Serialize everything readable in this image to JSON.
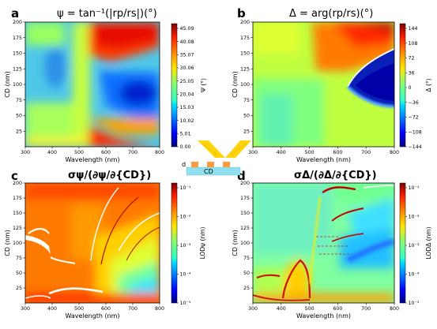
{
  "chart_data": [
    {
      "type": "heatmap",
      "panel": "a",
      "title": "ψ = tan⁻¹(|rp/rs|)(°)",
      "xlabel": "Wavelength (nm)",
      "ylabel": "CD (nm)",
      "xlim": [
        300,
        800
      ],
      "ylim": [
        0,
        200
      ],
      "xticks": [
        "300",
        "400",
        "500",
        "600",
        "700",
        "800"
      ],
      "yticks": [
        "25",
        "50",
        "75",
        "100",
        "125",
        "150",
        "175",
        "200"
      ],
      "colorbar_label": "Ψ (°)",
      "colorbar_ticks": [
        "45.09",
        "40.08",
        "35.07",
        "30.06",
        "25.05",
        "20.04",
        "15.03",
        "10.02",
        "5.01",
        "0.00"
      ],
      "colormap": "jet"
    },
    {
      "type": "heatmap",
      "panel": "b",
      "title": "Δ = arg(rp/rs)(°)",
      "xlabel": "Wavelength (nm)",
      "ylabel": "CD (nm)",
      "xlim": [
        300,
        800
      ],
      "ylim": [
        0,
        200
      ],
      "xticks": [
        "300",
        "400",
        "500",
        "600",
        "700",
        "800"
      ],
      "yticks": [
        "25",
        "50",
        "75",
        "100",
        "125",
        "150",
        "175",
        "200"
      ],
      "colorbar_label": "Δ (°)",
      "colorbar_ticks": [
        "144",
        "108",
        "72",
        "36",
        "0",
        "−36",
        "−72",
        "−108",
        "−144"
      ],
      "colormap": "jet"
    },
    {
      "type": "heatmap",
      "panel": "c",
      "title": "σψ/(∂ψ/∂{CD})",
      "xlabel": "Wavelength (nm)",
      "ylabel": "CD (nm)",
      "xlim": [
        300,
        800
      ],
      "ylim": [
        0,
        200
      ],
      "xticks": [
        "300",
        "400",
        "500",
        "600",
        "700",
        "800"
      ],
      "yticks": [
        "25",
        "50",
        "75",
        "100",
        "125",
        "150",
        "175",
        "200"
      ],
      "colorbar_label": "LODψ (nm)",
      "colorbar_ticks": [
        "10⁻¹",
        "10⁻²",
        "10⁻³",
        "10⁻⁴",
        "10⁻⁵"
      ],
      "colorbar_scale": "log",
      "colormap": "jet"
    },
    {
      "type": "heatmap",
      "panel": "d",
      "title": "σΔ/(∂Δ/∂{CD})",
      "xlabel": "Wavelength (nm)",
      "ylabel": "CD (nm)",
      "xlim": [
        300,
        800
      ],
      "ylim": [
        0,
        200
      ],
      "xticks": [
        "300",
        "400",
        "500",
        "600",
        "700",
        "800"
      ],
      "yticks": [
        "25",
        "50",
        "75",
        "100",
        "125",
        "150",
        "175",
        "200"
      ],
      "colorbar_label": "LODΔ (nm)",
      "colorbar_ticks": [
        "10⁻¹",
        "10⁻²",
        "10⁻³",
        "10⁻⁴",
        "10⁻⁵"
      ],
      "colorbar_scale": "log",
      "colormap": "jet"
    }
  ],
  "schematic": {
    "d_label": "d",
    "cd_label": "CD"
  }
}
